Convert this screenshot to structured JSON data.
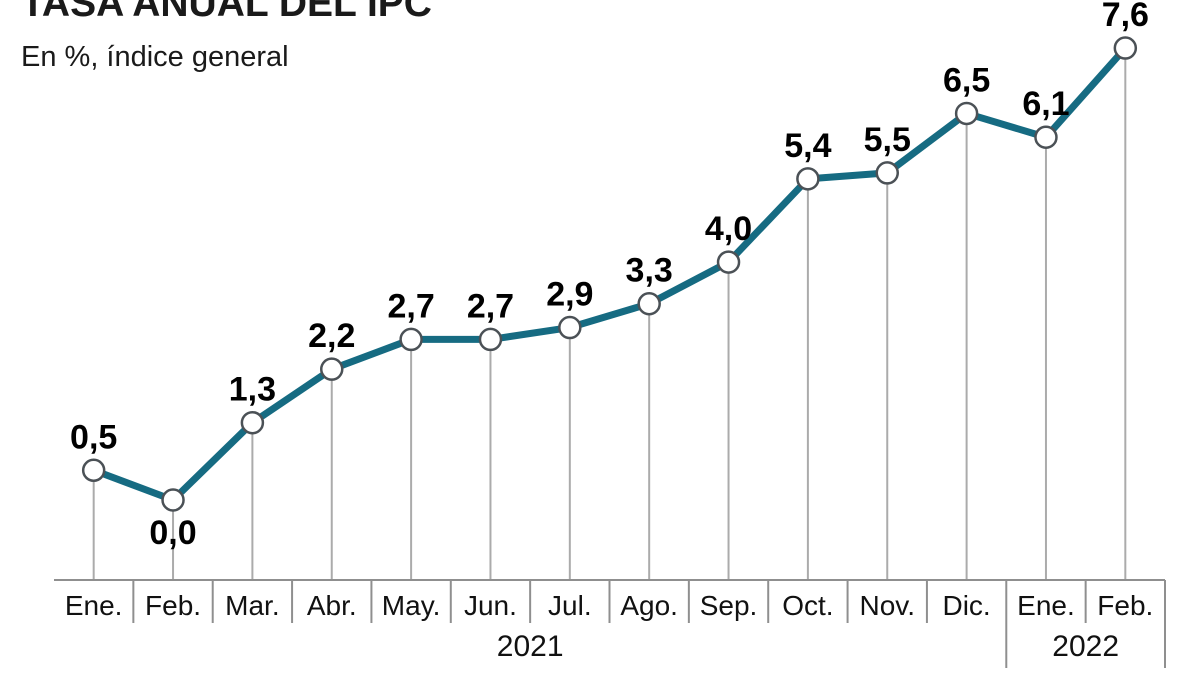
{
  "header": {
    "title": "TASA ANUAL DEL IPC",
    "subtitle": "En %, índice general"
  },
  "chart_data": {
    "type": "line",
    "title": "TASA ANUAL DEL IPC",
    "subtitle": "En %, índice general",
    "unit": "%",
    "categories": [
      "Ene.",
      "Feb.",
      "Mar.",
      "Abr.",
      "May.",
      "Jun.",
      "Jul.",
      "Ago.",
      "Sep.",
      "Oct.",
      "Nov.",
      "Dic.",
      "Ene.",
      "Feb."
    ],
    "values": [
      0.5,
      0.0,
      1.3,
      2.2,
      2.7,
      2.7,
      2.9,
      3.3,
      4.0,
      5.4,
      5.5,
      6.5,
      6.1,
      7.6
    ],
    "value_labels": [
      "0,5",
      "0,0",
      "1,3",
      "2,2",
      "2,7",
      "2,7",
      "2,9",
      "3,3",
      "4,0",
      "5,4",
      "5,5",
      "6,5",
      "6,1",
      "7,6"
    ],
    "year_groups": [
      {
        "label": "2021",
        "span": 12
      },
      {
        "label": "2022",
        "span": 2
      }
    ],
    "ylim": [
      0,
      7.6
    ],
    "grid": false,
    "legend": false,
    "label_below_indices": [
      1
    ],
    "colors": {
      "line": "#166b82",
      "marker_fill": "#ffffff",
      "marker_stroke": "#4b5156",
      "drop_line": "#ababab",
      "axis": "#8f8f8f",
      "label_text": "#000000"
    }
  }
}
